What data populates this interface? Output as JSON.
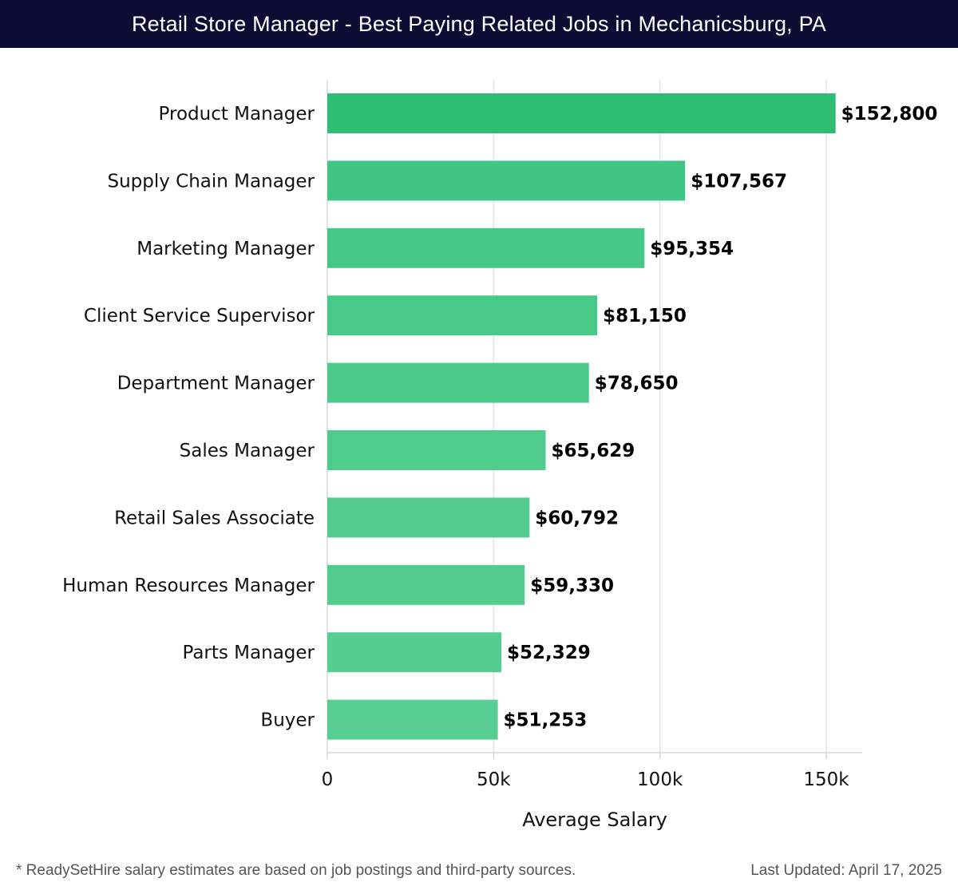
{
  "header": {
    "title": "Retail Store Manager - Best Paying Related Jobs in Mechanicsburg, PA"
  },
  "chart_data": {
    "type": "bar",
    "orientation": "horizontal",
    "title": "Retail Store Manager - Best Paying Related Jobs in Mechanicsburg, PA",
    "xlabel": "Average Salary",
    "ylabel": "",
    "xlim": [
      0,
      160000
    ],
    "xticks": [
      0,
      50000,
      100000,
      150000
    ],
    "xtick_labels": [
      "0",
      "50k",
      "100k",
      "150k"
    ],
    "grid": true,
    "categories": [
      "Product Manager",
      "Supply Chain Manager",
      "Marketing Manager",
      "Client Service Supervisor",
      "Department Manager",
      "Sales Manager",
      "Retail Sales Associate",
      "Human Resources Manager",
      "Parts Manager",
      "Buyer"
    ],
    "values": [
      152800,
      107567,
      95354,
      81150,
      78650,
      65629,
      60792,
      59330,
      52329,
      51253
    ],
    "value_labels": [
      "$152,800",
      "$107,567",
      "$95,354",
      "$81,150",
      "$78,650",
      "$65,629",
      "$60,792",
      "$59,330",
      "$52,329",
      "$51,253"
    ],
    "bar_colors": [
      "#2dbe74",
      "#3fc682",
      "#44c885",
      "#49c988",
      "#4bca8a",
      "#4fcb8c",
      "#51cc8e",
      "#53cc8f",
      "#56cd91",
      "#58ce93"
    ]
  },
  "footer": {
    "note": "* ReadySetHire salary estimates are based on job postings and third-party sources.",
    "updated": "Last Updated: April 17, 2025"
  }
}
